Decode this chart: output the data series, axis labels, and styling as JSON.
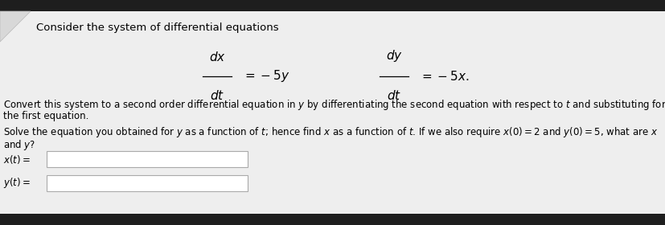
{
  "bg_dark": "#1e1e1e",
  "content_bg": "#eeeeee",
  "title": "Consider the system of differential equations",
  "font_size_title": 9.5,
  "font_size_body": 8.5,
  "font_size_eq": 11,
  "para1_line1": "Convert this system to a second order differential equation in $y$ by differentiating the second equation with respect to $t$ and substituting for $x$ from",
  "para1_line2": "the first equation.",
  "para2_line1": "Solve the equation you obtained for $y$ as a function of $t$; hence find $x$ as a function of $t$. If we also require $x(0) = 2$ and $y(0) = 5$, what are $x$",
  "para2_line2": "and $y$?",
  "label_x": "$x(t) =$",
  "label_y": "$y(t) =$"
}
